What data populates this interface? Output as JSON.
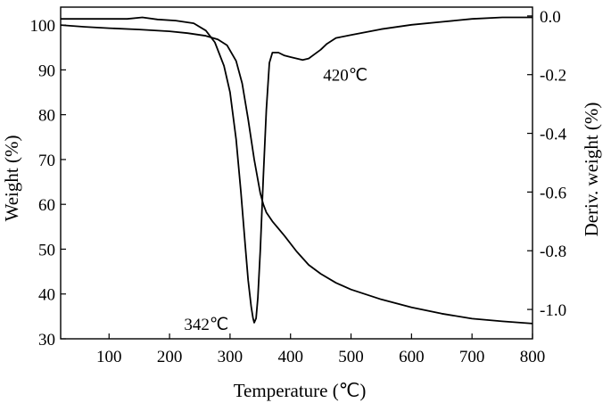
{
  "chart_data": {
    "type": "line",
    "xlabel": "Temperature (℃)",
    "ylabel": "Weight (%)",
    "y2label": "Deriv. weight (%)",
    "xlim": [
      20,
      800
    ],
    "ylim": [
      30,
      104
    ],
    "y2lim": [
      -1.1,
      0.03
    ],
    "xticks": [
      100,
      200,
      300,
      400,
      500,
      600,
      700,
      800
    ],
    "yticks": [
      30,
      40,
      50,
      60,
      70,
      80,
      90,
      100
    ],
    "y2ticks": [
      0.0,
      -0.2,
      -0.4,
      -0.6,
      -0.8,
      -1.0
    ],
    "grid": false,
    "legend": "none",
    "series": [
      {
        "axis": "left",
        "x": [
          20,
          60,
          100,
          150,
          200,
          230,
          260,
          280,
          295,
          310,
          320,
          330,
          340,
          350,
          355,
          360,
          370,
          390,
          410,
          430,
          450,
          475,
          500,
          550,
          600,
          650,
          700,
          750,
          800
        ],
        "y": [
          100.0,
          99.6,
          99.3,
          99.0,
          98.6,
          98.2,
          97.6,
          96.8,
          95.5,
          92.0,
          87.0,
          79.0,
          70.0,
          62.5,
          60.0,
          58.2,
          56.2,
          53.0,
          49.5,
          46.5,
          44.5,
          42.5,
          41.0,
          38.8,
          37.0,
          35.6,
          34.5,
          33.9,
          33.4
        ]
      },
      {
        "axis": "right",
        "x": [
          20,
          60,
          100,
          130,
          155,
          180,
          210,
          240,
          260,
          275,
          290,
          300,
          310,
          318,
          325,
          330,
          335,
          338,
          340,
          343,
          346,
          350,
          355,
          360,
          365,
          370,
          380,
          390,
          400,
          410,
          420,
          430,
          440,
          450,
          460,
          475,
          500,
          550,
          600,
          650,
          700,
          750,
          800
        ],
        "y": [
          -0.01,
          -0.01,
          -0.01,
          -0.01,
          -0.005,
          -0.012,
          -0.016,
          -0.025,
          -0.05,
          -0.09,
          -0.17,
          -0.26,
          -0.42,
          -0.6,
          -0.78,
          -0.9,
          -0.99,
          -1.03,
          -1.045,
          -1.03,
          -0.96,
          -0.8,
          -0.55,
          -0.32,
          -0.16,
          -0.125,
          -0.125,
          -0.135,
          -0.14,
          -0.145,
          -0.15,
          -0.145,
          -0.13,
          -0.115,
          -0.095,
          -0.075,
          -0.065,
          -0.045,
          -0.03,
          -0.02,
          -0.01,
          -0.005,
          -0.005
        ]
      }
    ],
    "annotations": [
      {
        "text": "420℃",
        "x": 420,
        "axis": "right",
        "y": -0.15
      },
      {
        "text": "342℃",
        "x": 342,
        "axis": "right",
        "y": -1.045
      }
    ]
  }
}
